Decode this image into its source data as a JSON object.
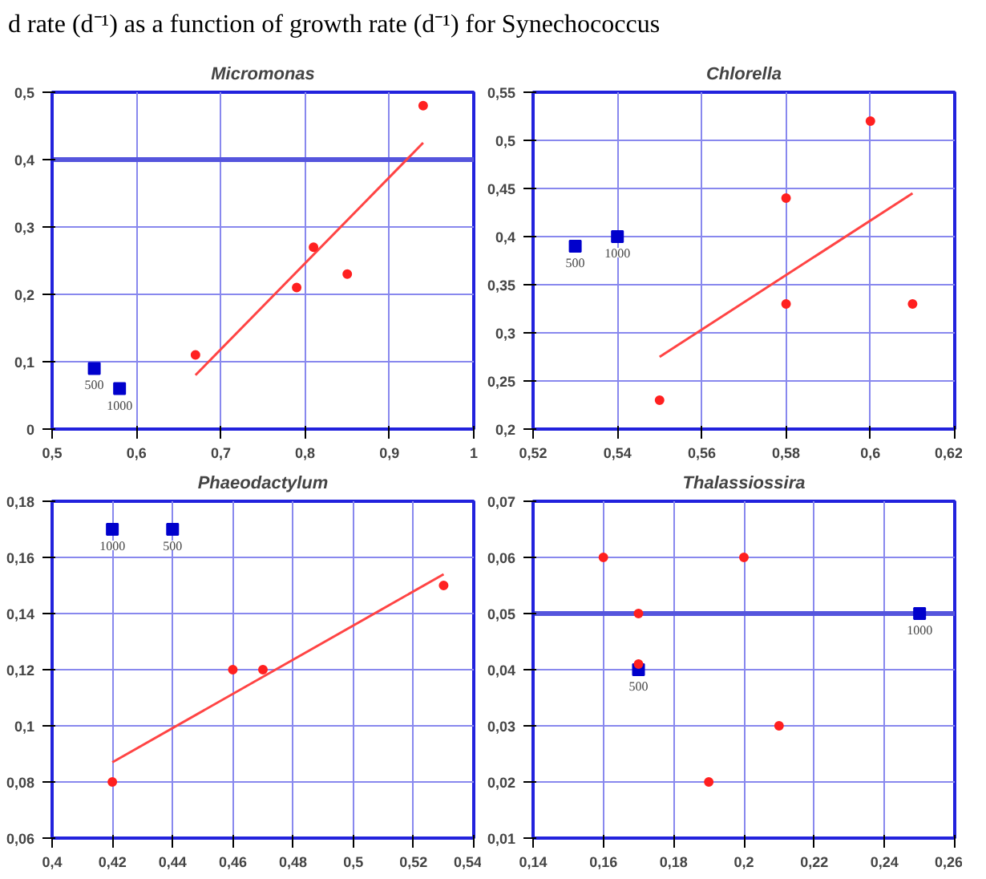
{
  "chart_data": [
    {
      "type": "scatter",
      "title": "Micromonas",
      "xlim": [
        0.5,
        1
      ],
      "ylim": [
        0,
        0.5
      ],
      "annotations": [
        "d rate (d⁻¹) as a function of growth rate (d⁻¹) for Synechococcus",
        {
          "text": "500",
          "x": 0.55,
          "y": 0.09
        },
        {
          "text": "1000",
          "x": 0.58,
          "y": 0.06
        }
      ],
      "xticks": [
        {
          "value": 0.5,
          "label": "0,5"
        },
        {
          "value": 0.6,
          "label": "0,6"
        },
        {
          "value": 0.7,
          "label": "0,7"
        },
        {
          "value": 0.8,
          "label": "0,8"
        },
        {
          "value": 0.9,
          "label": "0,9"
        },
        1
      ],
      "yticks": [
        0,
        {
          "value": 0.1,
          "label": "0,1"
        },
        {
          "value": 0.2,
          "label": "0,2"
        },
        {
          "value": 0.3,
          "label": "0,3"
        },
        {
          "value": 0.4,
          "label": "0,4"
        },
        {
          "value": 0.5,
          "label": "0,5"
        }
      ],
      "grid": true,
      "ref_lines": [
        {
          "axis": "y",
          "value": 0.4,
          "color": "#5555dd"
        }
      ],
      "series": [
        {
          "marker": "circle",
          "color": "#ff2020",
          "x": [
            0.67,
            0.79,
            0.81,
            0.85,
            0.94
          ],
          "values": [
            0.11,
            0.21,
            0.27,
            0.23,
            0.48
          ]
        },
        {
          "marker": "square",
          "color": "#0000cc",
          "x": [
            0.55,
            0.58
          ],
          "values": [
            0.09,
            0.06
          ]
        },
        {
          "type": "line",
          "marker": "none",
          "color": "#ff4444",
          "x": [
            0.67,
            0.94
          ],
          "values": [
            0.08,
            0.425
          ]
        }
      ]
    },
    {
      "type": "scatter",
      "title": "Chlorella",
      "xlim": [
        0.52,
        0.62
      ],
      "ylim": [
        0.2,
        0.55
      ],
      "annotations": [
        {
          "text": "500",
          "x": 0.53,
          "y": 0.39
        },
        {
          "text": "1000",
          "x": 0.54,
          "y": 0.4
        }
      ],
      "xticks": [
        {
          "value": 0.52,
          "label": "0,52"
        },
        {
          "value": 0.54,
          "label": "0,54"
        },
        {
          "value": 0.56,
          "label": "0,56"
        },
        {
          "value": 0.58,
          "label": "0,58"
        },
        {
          "value": 0.6,
          "label": "0,6"
        },
        {
          "value": 0.62,
          "label": "0,62"
        }
      ],
      "yticks": [
        {
          "value": 0.2,
          "label": "0,2"
        },
        {
          "value": 0.25,
          "label": "0,25"
        },
        {
          "value": 0.3,
          "label": "0,3"
        },
        {
          "value": 0.35,
          "label": "0,35"
        },
        {
          "value": 0.4,
          "label": "0,4"
        },
        {
          "value": 0.45,
          "label": "0,45"
        },
        {
          "value": 0.5,
          "label": "0,5"
        },
        {
          "value": 0.55,
          "label": "0,55"
        }
      ],
      "grid": true,
      "series": [
        {
          "marker": "circle",
          "color": "#ff2020",
          "x": [
            0.55,
            0.58,
            0.58,
            0.6,
            0.61
          ],
          "values": [
            0.23,
            0.44,
            0.33,
            0.52,
            0.33
          ]
        },
        {
          "marker": "square",
          "color": "#0000cc",
          "x": [
            0.53,
            0.54
          ],
          "values": [
            0.39,
            0.4
          ]
        },
        {
          "type": "line",
          "marker": "none",
          "color": "#ff4444",
          "x": [
            0.55,
            0.61
          ],
          "values": [
            0.275,
            0.445
          ]
        }
      ]
    },
    {
      "type": "scatter",
      "title": "Phaeodactylum",
      "xlim": [
        0.4,
        0.54
      ],
      "ylim": [
        0.06,
        0.18
      ],
      "annotations": [
        {
          "text": "1000",
          "x": 0.42,
          "y": 0.17
        },
        {
          "text": "500",
          "x": 0.44,
          "y": 0.17
        }
      ],
      "xticks": [
        {
          "value": 0.4,
          "label": "0,4"
        },
        {
          "value": 0.42,
          "label": "0,42"
        },
        {
          "value": 0.44,
          "label": "0,44"
        },
        {
          "value": 0.46,
          "label": "0,46"
        },
        {
          "value": 0.48,
          "label": "0,48"
        },
        {
          "value": 0.5,
          "label": "0,5"
        },
        {
          "value": 0.52,
          "label": "0,52"
        },
        {
          "value": 0.54,
          "label": "0,54"
        }
      ],
      "yticks": [
        {
          "value": 0.06,
          "label": "0,06"
        },
        {
          "value": 0.08,
          "label": "0,08"
        },
        {
          "value": 0.1,
          "label": "0,1"
        },
        {
          "value": 0.12,
          "label": "0,12"
        },
        {
          "value": 0.14,
          "label": "0,14"
        },
        {
          "value": 0.16,
          "label": "0,16"
        },
        {
          "value": 0.18,
          "label": "0,18"
        }
      ],
      "grid": true,
      "series": [
        {
          "marker": "circle",
          "color": "#ff2020",
          "x": [
            0.42,
            0.46,
            0.47,
            0.53
          ],
          "values": [
            0.08,
            0.12,
            0.12,
            0.15
          ]
        },
        {
          "marker": "square",
          "color": "#0000cc",
          "x": [
            0.42,
            0.44
          ],
          "values": [
            0.17,
            0.17
          ]
        },
        {
          "type": "line",
          "marker": "none",
          "color": "#ff4444",
          "x": [
            0.42,
            0.53
          ],
          "values": [
            0.087,
            0.154
          ]
        }
      ]
    },
    {
      "type": "scatter",
      "title": "Thalassiossira",
      "xlim": [
        0.14,
        0.26
      ],
      "ylim": [
        0.01,
        0.07
      ],
      "annotations": [
        {
          "text": "500",
          "x": 0.17,
          "y": 0.04
        },
        {
          "text": "1000",
          "x": 0.25,
          "y": 0.05
        }
      ],
      "xticks": [
        {
          "value": 0.14,
          "label": "0,14"
        },
        {
          "value": 0.16,
          "label": "0,16"
        },
        {
          "value": 0.18,
          "label": "0,18"
        },
        {
          "value": 0.2,
          "label": "0,2"
        },
        {
          "value": 0.22,
          "label": "0,22"
        },
        {
          "value": 0.24,
          "label": "0,24"
        },
        {
          "value": 0.26,
          "label": "0,26"
        }
      ],
      "yticks": [
        {
          "value": 0.01,
          "label": "0,01"
        },
        {
          "value": 0.02,
          "label": "0,02"
        },
        {
          "value": 0.03,
          "label": "0,03"
        },
        {
          "value": 0.04,
          "label": "0,04"
        },
        {
          "value": 0.05,
          "label": "0,05"
        },
        {
          "value": 0.06,
          "label": "0,06"
        },
        {
          "value": 0.07,
          "label": "0,07"
        }
      ],
      "grid": true,
      "ref_lines": [
        {
          "axis": "y",
          "value": 0.05,
          "color": "#5555dd"
        }
      ],
      "series": [
        {
          "marker": "circle",
          "color": "#ff2020",
          "x": [
            0.16,
            0.2,
            0.17,
            0.17,
            0.21,
            0.19
          ],
          "values": [
            0.06,
            0.06,
            0.05,
            0.041,
            0.03,
            0.02
          ]
        },
        {
          "marker": "square",
          "color": "#0000cc",
          "x": [
            0.17,
            0.25
          ],
          "values": [
            0.04,
            0.05
          ]
        }
      ]
    }
  ]
}
